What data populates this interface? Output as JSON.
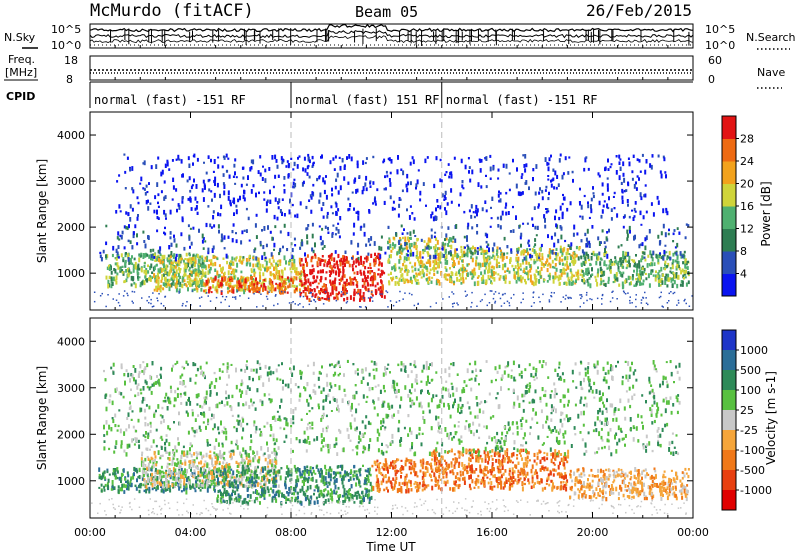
{
  "header": {
    "station": "McMurdo (fitACF)",
    "beam": "Beam 05",
    "date": "26/Feb/2015"
  },
  "side_labels": {
    "nsky": "N.Sky",
    "freq": "Freq.",
    "freq_unit": "[MHz]",
    "cpid": "CPID",
    "nsearch": "N.Search",
    "nave": "Nave"
  },
  "top_panels": {
    "noise_left_ticks": [
      "10^5",
      "10^0"
    ],
    "noise_right_ticks": [
      "10^5",
      "10^0"
    ],
    "freq_left_ticks": [
      "18",
      "8"
    ],
    "freq_right_ticks": [
      "60",
      "0"
    ]
  },
  "cpid_segments": [
    {
      "label": "normal (fast) -151 RF",
      "start_hour": 0
    },
    {
      "label": "normal (fast) 151 RF",
      "start_hour": 8
    },
    {
      "label": "normal (fast) -151 RF",
      "start_hour": 14
    }
  ],
  "chart_data": [
    {
      "type": "heatmap",
      "name": "power-panel",
      "ylabel": "Slant Range [km]",
      "ylim": [
        200,
        4500
      ],
      "y_ticks": [
        "1000",
        "2000",
        "3000",
        "4000"
      ],
      "xlim_hours": [
        0,
        24
      ],
      "colorbar": {
        "label": "Power [dB]",
        "ticks": [
          "4",
          "8",
          "12",
          "16",
          "20",
          "24",
          "28"
        ],
        "colors": [
          "#0a14f0",
          "#2a4fb8",
          "#2e7d52",
          "#4fb070",
          "#cfd43a",
          "#f2a21c",
          "#ee6a12",
          "#e21414"
        ]
      },
      "regions": [
        {
          "t0": 0.6,
          "t1": 4.5,
          "r0": 750,
          "r1": 1450,
          "level": 3
        },
        {
          "t0": 2.5,
          "t1": 8.5,
          "r0": 650,
          "r1": 1400,
          "level": 4
        },
        {
          "t0": 4.5,
          "t1": 8.2,
          "r0": 600,
          "r1": 950,
          "level": 6
        },
        {
          "t0": 8.3,
          "t1": 11.7,
          "r0": 450,
          "r1": 1450,
          "level": 7
        },
        {
          "t0": 11.8,
          "t1": 14.5,
          "r0": 800,
          "r1": 1800,
          "level": 4
        },
        {
          "t0": 14.5,
          "t1": 19.5,
          "r0": 800,
          "r1": 1600,
          "level": 4
        },
        {
          "t0": 19.5,
          "t1": 23.8,
          "r0": 750,
          "r1": 1500,
          "level": 3
        },
        {
          "t0": 0.3,
          "t1": 23.8,
          "r0": 1350,
          "r1": 2100,
          "level": 1
        },
        {
          "t0": 1.0,
          "t1": 23.0,
          "r0": 2200,
          "r1": 3600,
          "level": 0
        }
      ]
    },
    {
      "type": "heatmap",
      "name": "velocity-panel",
      "ylabel": "Slant Range [km]",
      "ylim": [
        200,
        4500
      ],
      "y_ticks": [
        "1000",
        "2000",
        "3000",
        "4000"
      ],
      "xlim_hours": [
        0,
        24
      ],
      "x_ticks": [
        "00:00",
        "04:00",
        "08:00",
        "12:00",
        "16:00",
        "20:00",
        "00:00"
      ],
      "xlabel": "Time UT",
      "colorbar": {
        "label": "Velocity [m s-1]",
        "ticks": [
          "1000",
          "500",
          "100",
          "25",
          "-25",
          "-100",
          "-500",
          "-1000"
        ],
        "colors": [
          "#1e35c8",
          "#2b6e98",
          "#2e8a58",
          "#58c040",
          "#c8c8c8",
          "#f5a53a",
          "#f07818",
          "#e84010",
          "#e00000"
        ]
      },
      "regions": [
        {
          "t0": 0.3,
          "t1": 5.0,
          "r0": 800,
          "r1": 1300,
          "level": 2
        },
        {
          "t0": 2.0,
          "t1": 7.5,
          "r0": 900,
          "r1": 1650,
          "level": 4
        },
        {
          "t0": 5.0,
          "t1": 11.2,
          "r0": 550,
          "r1": 1350,
          "level": 2
        },
        {
          "t0": 11.2,
          "t1": 13.5,
          "r0": 800,
          "r1": 1500,
          "level": 6
        },
        {
          "t0": 13.5,
          "t1": 19.0,
          "r0": 850,
          "r1": 1700,
          "level": 6
        },
        {
          "t0": 19.0,
          "t1": 23.8,
          "r0": 650,
          "r1": 1300,
          "level": 5
        },
        {
          "t0": 0.5,
          "t1": 23.5,
          "r0": 1600,
          "r1": 3600,
          "level": 3
        }
      ]
    }
  ]
}
